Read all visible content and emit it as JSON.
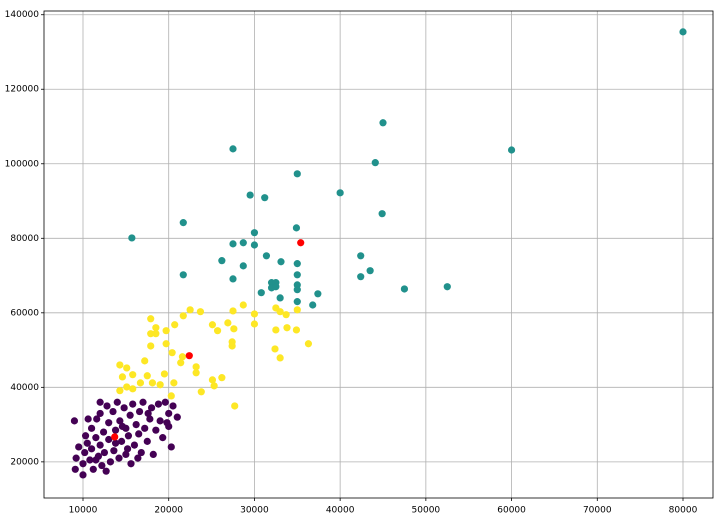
{
  "chart_data": {
    "type": "scatter",
    "xlim": [
      5450,
      83500
    ],
    "ylim": [
      10300,
      141000
    ],
    "xticks": [
      10000,
      20000,
      30000,
      40000,
      50000,
      60000,
      70000,
      80000
    ],
    "yticks": [
      20000,
      40000,
      60000,
      80000,
      100000,
      120000,
      140000
    ],
    "grid": true,
    "series": [
      {
        "color": "#440154",
        "x": [
          9000,
          9100,
          9200,
          9500,
          10000,
          10000,
          10200,
          10300,
          10500,
          10800,
          11000,
          11000,
          11200,
          11500,
          11600,
          11800,
          12000,
          12000,
          12200,
          12400,
          12500,
          12800,
          13000,
          13000,
          13200,
          13500,
          13600,
          13800,
          14000,
          14200,
          14300,
          14500,
          14800,
          15000,
          15000,
          15300,
          15500,
          15600,
          15800,
          16000,
          16200,
          16500,
          16600,
          16800,
          17000,
          17200,
          17500,
          17800,
          18000,
          18200,
          18500,
          18800,
          19000,
          19300,
          19600,
          20000,
          20000,
          20300,
          20500,
          21000,
          11500,
          12700,
          13800,
          15200,
          16400,
          14600,
          17600,
          19800,
          10600,
          12000
        ],
        "values": [
          31000,
          18000,
          21000,
          24000,
          16500,
          19500,
          22500,
          27000,
          25000,
          20500,
          29000,
          23500,
          18000,
          26500,
          31500,
          21500,
          24500,
          33000,
          19000,
          28000,
          22500,
          35000,
          30500,
          26000,
          20000,
          33500,
          23000,
          28500,
          36000,
          21000,
          31000,
          25500,
          34500,
          29000,
          22000,
          27000,
          32500,
          19500,
          35500,
          24500,
          30000,
          27500,
          33500,
          22500,
          36000,
          29000,
          25500,
          31500,
          34500,
          22000,
          28500,
          35500,
          31000,
          26500,
          36000,
          33000,
          29500,
          24000,
          35000,
          32000,
          20500,
          17500,
          25000,
          23500,
          21000,
          29500,
          33000,
          30500,
          31500,
          36000
        ]
      },
      {
        "color": "#21918c",
        "x": [
          80000,
          45000,
          27500,
          60000,
          44100,
          35000,
          29500,
          31200,
          40000,
          44900,
          21700,
          15700,
          34900,
          30000,
          27500,
          28700,
          30000,
          31400,
          42400,
          33100,
          26200,
          28700,
          21700,
          35000,
          35000,
          43500,
          42400,
          27500,
          32000,
          32500,
          32000,
          32500,
          35000,
          35000,
          30800,
          37400,
          47500,
          52500,
          35000,
          36800,
          33000
        ],
        "values": [
          135400,
          111000,
          104000,
          103700,
          100300,
          97300,
          91600,
          90900,
          92200,
          86600,
          84200,
          80100,
          82800,
          81500,
          78500,
          78800,
          78200,
          75300,
          75300,
          73700,
          74000,
          72600,
          70200,
          73200,
          70200,
          71300,
          69700,
          69100,
          68100,
          68100,
          66700,
          67000,
          67500,
          66200,
          65400,
          65100,
          66400,
          67000,
          63000,
          62100,
          64000
        ]
      },
      {
        "color": "#fde725",
        "x": [
          17900,
          22500,
          23700,
          21700,
          18500,
          20700,
          19700,
          17900,
          18500,
          25100,
          25700,
          26900,
          27600,
          28700,
          27500,
          30000,
          30000,
          32500,
          33000,
          33700,
          35000,
          33800,
          34900,
          32500,
          27400,
          27400,
          36300,
          32400,
          33000,
          17900,
          19700,
          20400,
          21600,
          21400,
          17200,
          14300,
          15100,
          23200,
          23200,
          17500,
          19500,
          14600,
          15800,
          25100,
          26200,
          16700,
          18100,
          19000,
          20600,
          15100,
          15800,
          23800,
          25300,
          20300,
          27700,
          14300
        ],
        "values": [
          58400,
          60800,
          60300,
          59200,
          56000,
          56800,
          55200,
          54400,
          54400,
          56800,
          55200,
          57300,
          55700,
          62100,
          60500,
          59700,
          57000,
          61300,
          60300,
          59500,
          60800,
          56000,
          55400,
          55400,
          52200,
          51100,
          51700,
          50300,
          47900,
          51100,
          51700,
          49300,
          48200,
          46600,
          47100,
          46000,
          45200,
          45500,
          43900,
          43100,
          43600,
          42800,
          43400,
          42000,
          42600,
          41200,
          41200,
          40700,
          41200,
          40100,
          39600,
          38800,
          40400,
          37700,
          35000,
          39100
        ]
      },
      {
        "color": "#ff0000",
        "x": [
          13700,
          22400,
          35400
        ],
        "values": [
          26700,
          48500,
          78800
        ]
      }
    ]
  }
}
